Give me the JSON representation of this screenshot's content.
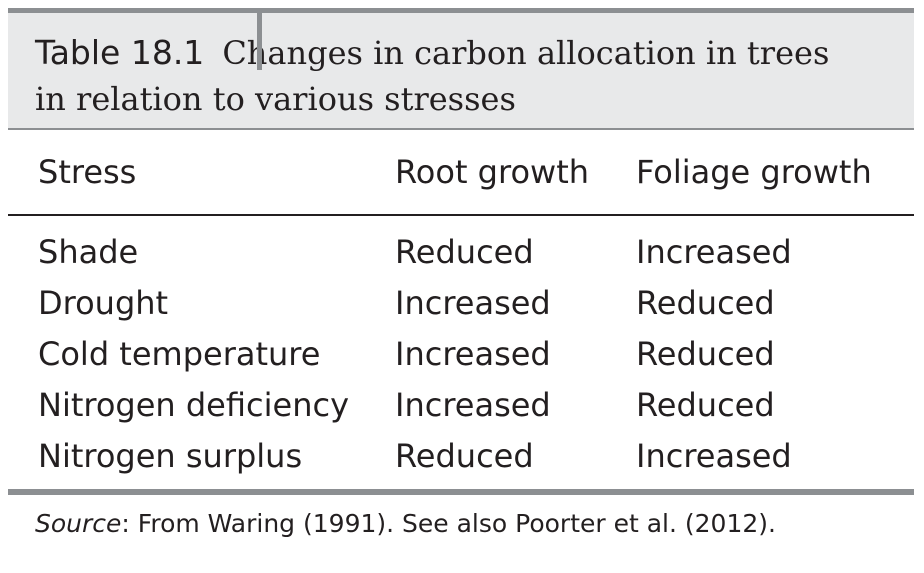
{
  "table": {
    "label": "Table 18.1",
    "title_line1": "Changes in carbon allocation in trees",
    "title_line2": "in relation to various stresses",
    "columns": [
      "Stress",
      "Root growth",
      "Foliage growth"
    ],
    "rows": [
      [
        "Shade",
        "Reduced",
        "Increased"
      ],
      [
        "Drought",
        "Increased",
        "Reduced"
      ],
      [
        "Cold temperature",
        "Increased",
        "Reduced"
      ],
      [
        "Nitrogen deficiency",
        "Increased",
        "Reduced"
      ],
      [
        "Nitrogen surplus",
        "Reduced",
        "Increased"
      ]
    ]
  },
  "source": {
    "label": "Source",
    "text": ": From Waring (1991). See also Poorter et al. (2012)."
  }
}
